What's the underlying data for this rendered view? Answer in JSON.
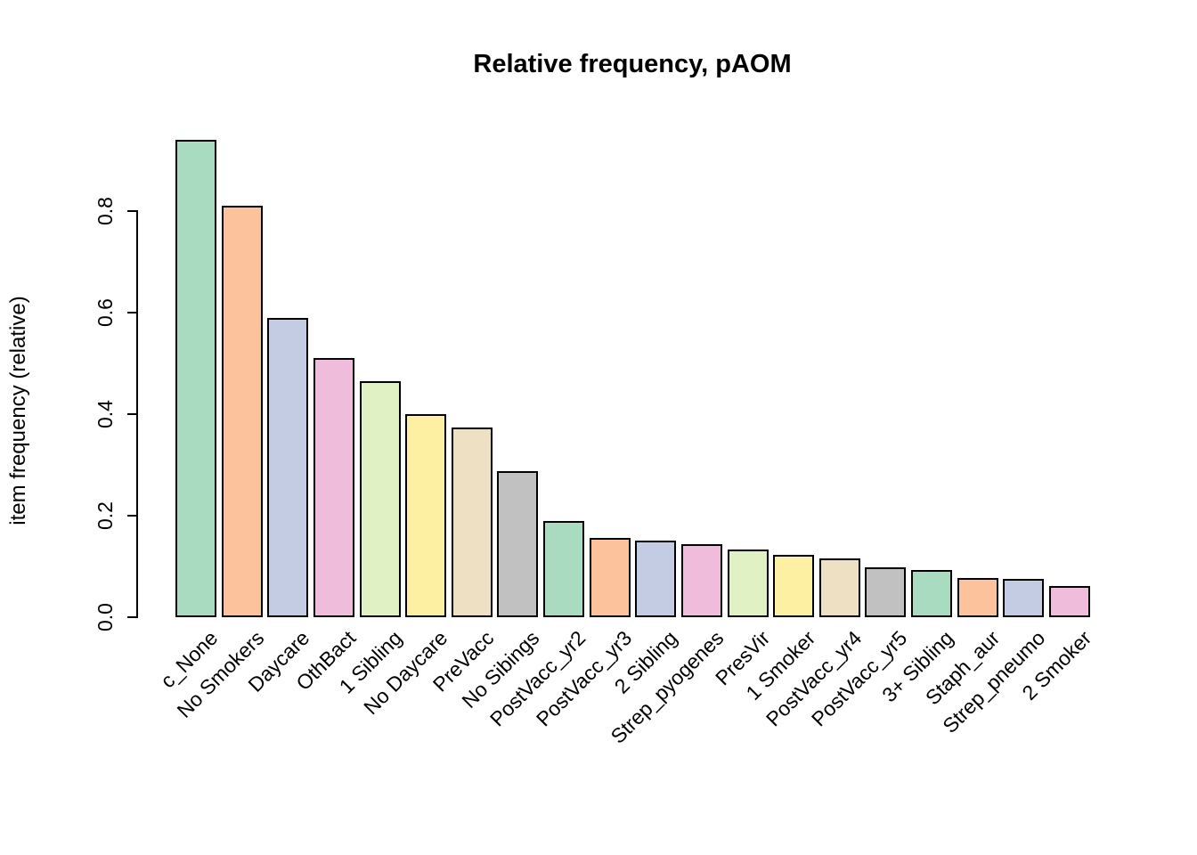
{
  "chart_data": {
    "type": "bar",
    "title": "Relative frequency, pAOM",
    "xlabel": "",
    "ylabel": "item frequency (relative)",
    "categories": [
      "c_None",
      "No Smokers",
      "Daycare",
      "OthBact",
      "1 Sibling",
      "No Daycare",
      "PreVacc",
      "No Sibings",
      "PostVacc_yr2",
      "PostVacc_yr3",
      "2 Sibling",
      "Strep_pyogenes",
      "PresVir",
      "1 Smoker",
      "PostVacc_yr4",
      "PostVacc_yr5",
      "3+ Sibling",
      "Staph_aur",
      "Strep_pneumo",
      "2 Smoker"
    ],
    "values": [
      0.94,
      0.81,
      0.59,
      0.51,
      0.465,
      0.4,
      0.373,
      0.288,
      0.19,
      0.156,
      0.15,
      0.144,
      0.134,
      0.123,
      0.116,
      0.099,
      0.093,
      0.078,
      0.075,
      0.062
    ],
    "bar_colors_cycle": [
      "#A8DBC0",
      "#FBC29C",
      "#C3CCE3",
      "#F0BCDC",
      "#E0F2C4",
      "#FDF0A3",
      "#EEE0C3",
      "#C1C1C1"
    ],
    "bar_border_color": "#000000",
    "yticks": [
      "0.0",
      "0.2",
      "0.4",
      "0.6",
      "0.8"
    ],
    "ylim": [
      0,
      0.94
    ],
    "x_label_rotation_deg": 45,
    "grid": false,
    "legend": false,
    "background": "#ffffff"
  }
}
